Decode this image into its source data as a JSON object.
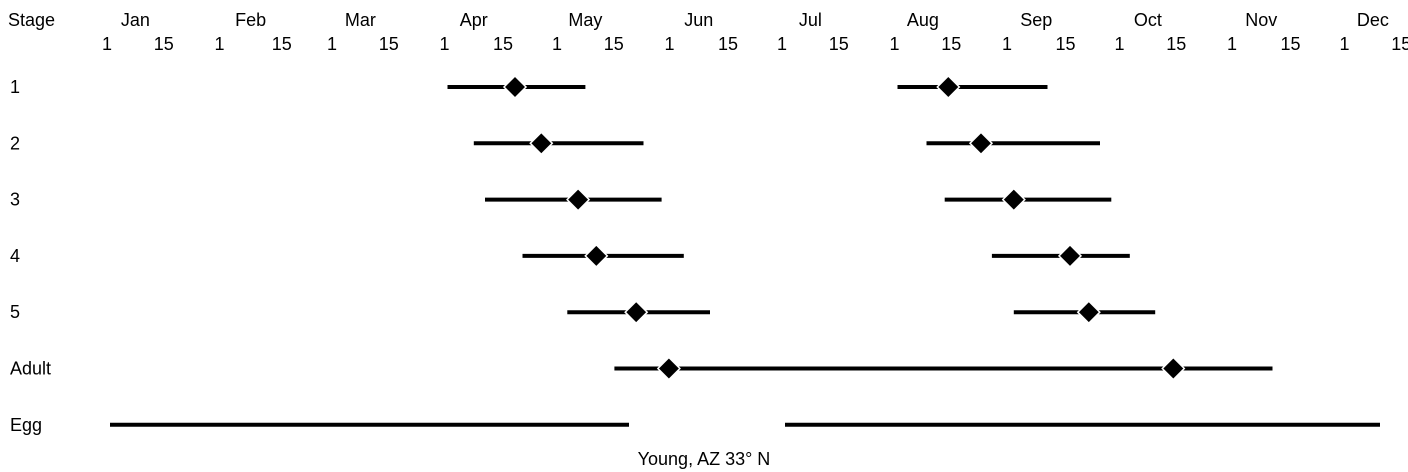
{
  "chart_data": {
    "type": "range",
    "header_label": "Stage",
    "months": [
      {
        "name": "Jan",
        "ticks": [
          "1",
          "15"
        ]
      },
      {
        "name": "Feb",
        "ticks": [
          "1",
          "15"
        ]
      },
      {
        "name": "Mar",
        "ticks": [
          "1",
          "15"
        ]
      },
      {
        "name": "Apr",
        "ticks": [
          "1",
          "15"
        ]
      },
      {
        "name": "May",
        "ticks": [
          "1",
          "15"
        ]
      },
      {
        "name": "Jun",
        "ticks": [
          "1",
          "15"
        ]
      },
      {
        "name": "Jul",
        "ticks": [
          "1",
          "15"
        ]
      },
      {
        "name": "Aug",
        "ticks": [
          "1",
          "15"
        ]
      },
      {
        "name": "Sep",
        "ticks": [
          "1",
          "15"
        ]
      },
      {
        "name": "Oct",
        "ticks": [
          "1",
          "15"
        ]
      },
      {
        "name": "Nov",
        "ticks": [
          "1",
          "15"
        ]
      },
      {
        "name": "Dec",
        "ticks": [
          "1",
          "15"
        ]
      }
    ],
    "rows": [
      {
        "label": "1",
        "ranges": [
          {
            "start": "Apr 1",
            "peak": "Apr 19",
            "end": "May 8"
          },
          {
            "start": "Aug 1",
            "peak": "Aug 15",
            "end": "Sep 11"
          }
        ]
      },
      {
        "label": "2",
        "ranges": [
          {
            "start": "Apr 8",
            "peak": "Apr 26",
            "end": "May 24"
          },
          {
            "start": "Aug 9",
            "peak": "Aug 24",
            "end": "Sep 25"
          }
        ]
      },
      {
        "label": "3",
        "ranges": [
          {
            "start": "Apr 11",
            "peak": "May 6",
            "end": "May 29"
          },
          {
            "start": "Aug 14",
            "peak": "Sep 2",
            "end": "Sep 28"
          }
        ]
      },
      {
        "label": "4",
        "ranges": [
          {
            "start": "Apr 21",
            "peak": "May 11",
            "end": "Jun 4"
          },
          {
            "start": "Aug 27",
            "peak": "Sep 17",
            "end": "Oct 3"
          }
        ]
      },
      {
        "label": "5",
        "ranges": [
          {
            "start": "May 3",
            "peak": "May 22",
            "end": "Jun 11"
          },
          {
            "start": "Sep 2",
            "peak": "Sep 22",
            "end": "Oct 10"
          }
        ]
      },
      {
        "label": "Adult",
        "ranges": [
          {
            "start": "May 16",
            "peak": "May 31",
            "end": "Nov 11",
            "peaks": [
              "May 31",
              "Oct 15"
            ]
          }
        ]
      },
      {
        "label": "Egg",
        "ranges": [
          {
            "start": "Jan 1",
            "end": "May 20"
          },
          {
            "start": "Jul 1",
            "end": "Dec 31"
          }
        ]
      }
    ],
    "caption": "Young, AZ 33° N"
  }
}
